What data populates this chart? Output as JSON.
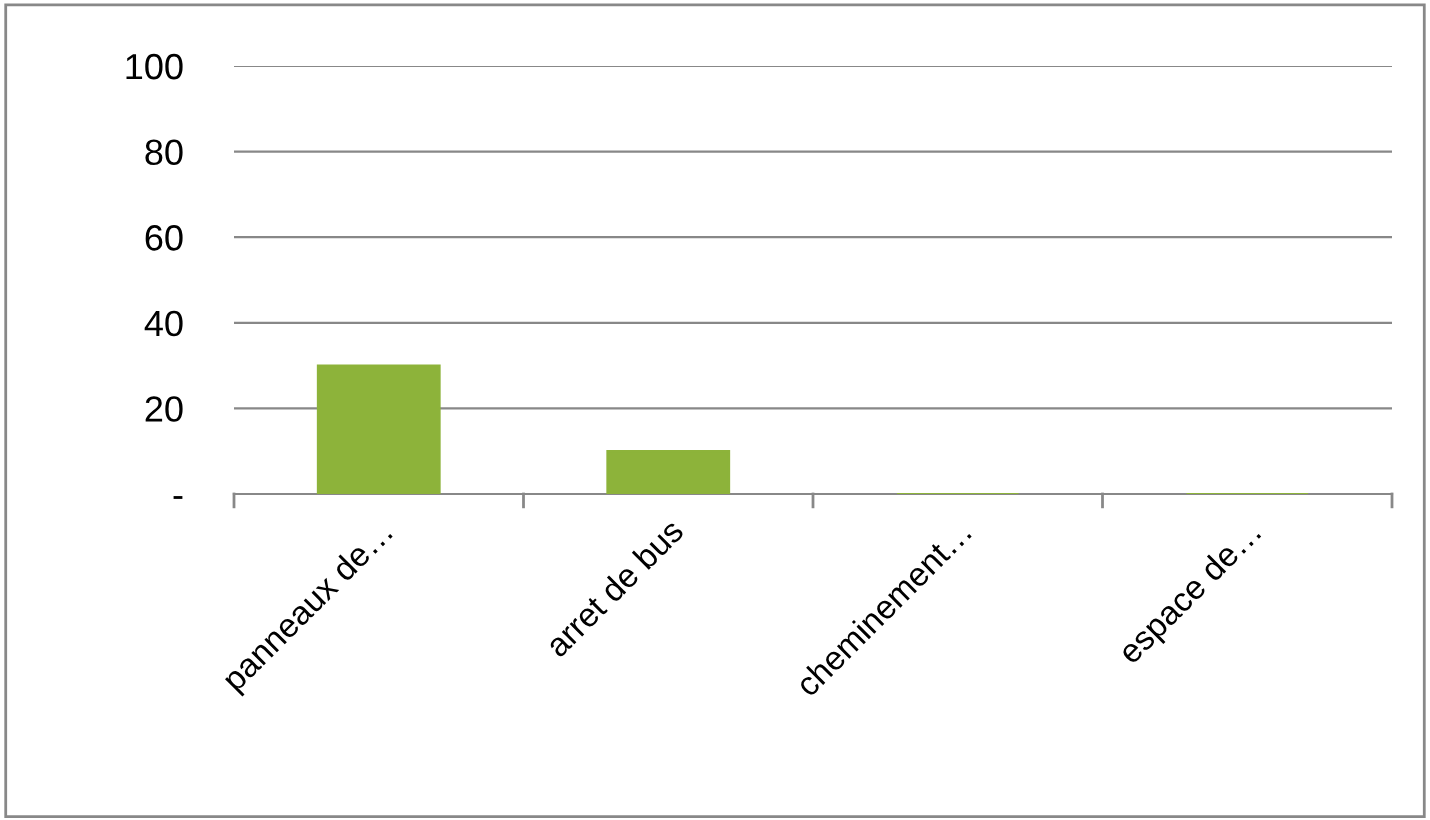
{
  "chart_data": {
    "type": "bar",
    "categories": [
      "panneaux de…",
      "arret de bus",
      "cheminement…",
      "espace de…"
    ],
    "values": [
      30,
      10,
      0,
      0
    ],
    "color": "#8db33a",
    "ylim": [
      0,
      100
    ],
    "yticks": [
      {
        "value": 0,
        "label": "-"
      },
      20,
      40,
      60,
      80,
      100
    ],
    "grid": "y"
  }
}
